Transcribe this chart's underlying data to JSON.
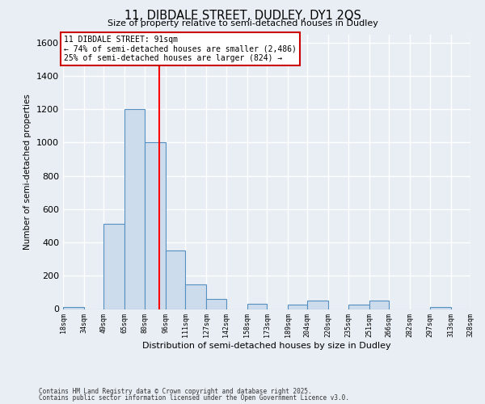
{
  "title_line1": "11, DIBDALE STREET, DUDLEY, DY1 2QS",
  "title_line2": "Size of property relative to semi-detached houses in Dudley",
  "xlabel": "Distribution of semi-detached houses by size in Dudley",
  "ylabel": "Number of semi-detached properties",
  "annotation_line1": "11 DIBDALE STREET: 91sqm",
  "annotation_line2": "← 74% of semi-detached houses are smaller (2,486)",
  "annotation_line3": "25% of semi-detached houses are larger (824) →",
  "footer_line1": "Contains HM Land Registry data © Crown copyright and database right 2025.",
  "footer_line2": "Contains public sector information licensed under the Open Government Licence v3.0.",
  "property_size": 91,
  "bin_edges": [
    18,
    34,
    49,
    65,
    80,
    96,
    111,
    127,
    142,
    158,
    173,
    189,
    204,
    220,
    235,
    251,
    266,
    282,
    297,
    313,
    328
  ],
  "bin_labels": [
    "18sqm",
    "34sqm",
    "49sqm",
    "65sqm",
    "80sqm",
    "96sqm",
    "111sqm",
    "127sqm",
    "142sqm",
    "158sqm",
    "173sqm",
    "189sqm",
    "204sqm",
    "220sqm",
    "235sqm",
    "251sqm",
    "266sqm",
    "282sqm",
    "297sqm",
    "313sqm",
    "328sqm"
  ],
  "bar_heights": [
    10,
    0,
    510,
    1200,
    1000,
    350,
    150,
    60,
    0,
    30,
    0,
    25,
    50,
    0,
    25,
    50,
    0,
    0,
    10,
    0
  ],
  "bar_color": "#ccdcec",
  "bar_edge_color": "#5590c0",
  "red_line_x": 91,
  "ylim": [
    0,
    1650
  ],
  "yticks": [
    0,
    200,
    400,
    600,
    800,
    1000,
    1200,
    1400,
    1600
  ],
  "background_color": "#e8eef4",
  "plot_background": "#e8eef4",
  "grid_color": "#ffffff",
  "annotation_box_color": "#ffffff",
  "annotation_box_edge": "#cc0000"
}
